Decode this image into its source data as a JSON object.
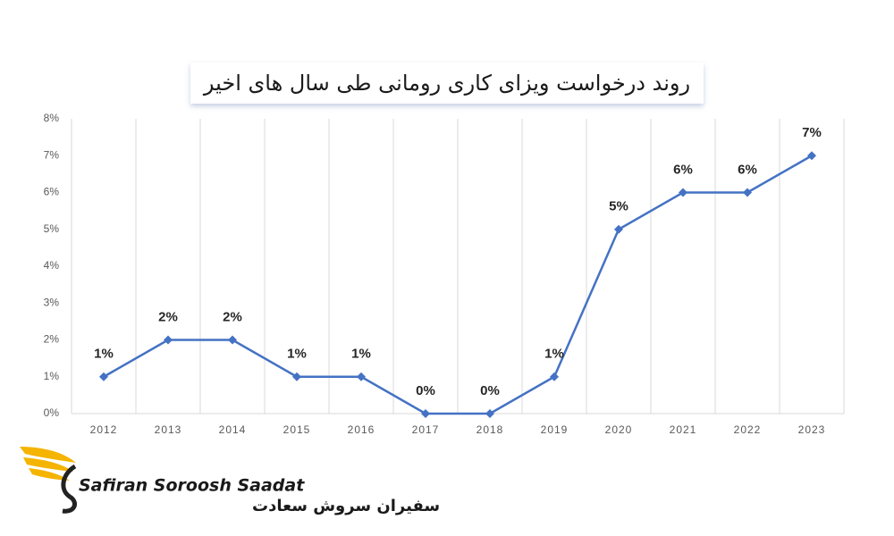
{
  "chart_data": {
    "type": "line",
    "title": "روند درخواست ویزای کاری رومانی طی سال های اخیر",
    "x": [
      2012,
      2013,
      2014,
      2015,
      2016,
      2017,
      2018,
      2019,
      2020,
      2021,
      2022,
      2023
    ],
    "values": [
      1,
      2,
      2,
      1,
      1,
      0,
      0,
      1,
      5,
      6,
      6,
      7
    ],
    "value_labels": [
      "1%",
      "2%",
      "2%",
      "1%",
      "1%",
      "0%",
      "0%",
      "1%",
      "5%",
      "6%",
      "6%",
      "7%"
    ],
    "color": "#4472c4",
    "xlim": [
      2011.5,
      2023.5
    ],
    "ylim": [
      0,
      8
    ],
    "yticks": [
      {
        "value": 0,
        "label": "0%"
      },
      {
        "value": 1,
        "label": "1%"
      },
      {
        "value": 2,
        "label": "2%"
      },
      {
        "value": 3,
        "label": "3%"
      },
      {
        "value": 4,
        "label": "4%"
      },
      {
        "value": 5,
        "label": "5%"
      },
      {
        "value": 6,
        "label": "6%"
      },
      {
        "value": 7,
        "label": "7%"
      },
      {
        "value": 8,
        "label": "8%"
      }
    ]
  },
  "logo": {
    "name": "Safiran Soroosh Saadat",
    "name_fa": "سفیران سروش سعادت"
  }
}
